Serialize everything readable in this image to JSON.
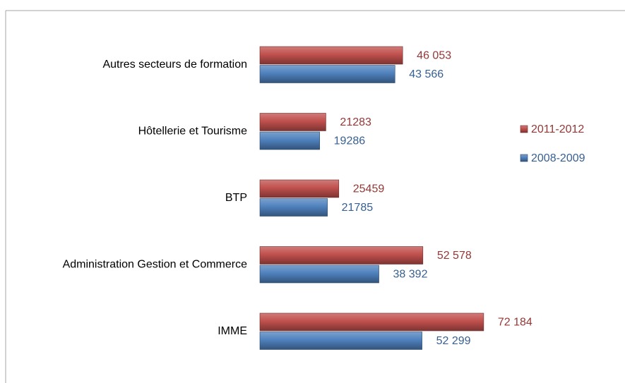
{
  "chart_data": {
    "type": "bar",
    "orientation": "horizontal",
    "legend": "right",
    "categories": [
      "Autres secteurs de formation",
      "Hôtellerie et Tourisme",
      "BTP",
      "Administration Gestion et Commerce",
      "IMME"
    ],
    "series": [
      {
        "name": "2011-2012",
        "color": "#c0504d",
        "label_color": "#953735",
        "values": [
          46053,
          21283,
          25459,
          52578,
          72184
        ],
        "value_labels": [
          "46 053",
          "21283",
          "25459",
          "52 578",
          "72 184"
        ]
      },
      {
        "name": "2008-2009",
        "color": "#4f81bd",
        "label_color": "#376092",
        "values": [
          43566,
          19286,
          21785,
          38392,
          52299
        ],
        "value_labels": [
          "43 566",
          "19286",
          "21785",
          "38 392",
          "52 299"
        ]
      }
    ],
    "xlim": [
      0,
      100000
    ]
  }
}
